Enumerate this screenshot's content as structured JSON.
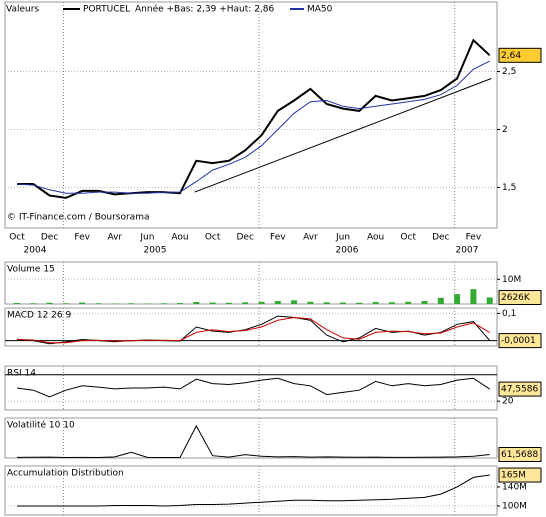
{
  "chart_data": [
    {
      "type": "line",
      "header_label": "Valeurs",
      "range_label": "Année +Bas: 2,39 +Haut: 2,86",
      "source": "© IT-Finance.com / Boursorama",
      "categories": [
        "Oct",
        null,
        "Dec",
        null,
        "Fev",
        null,
        "Avr",
        null,
        "Jun",
        null,
        "Aou",
        null,
        "Oct",
        null,
        "Dec",
        null,
        "Fev",
        null,
        "Avr",
        null,
        "Jun",
        null,
        "Aou",
        null,
        "Oct",
        null,
        "Dec",
        null,
        "Fev",
        null
      ],
      "year_labels": [
        "2004",
        "2005",
        "2006",
        "2007"
      ],
      "series": [
        {
          "name": "PORTUCEL",
          "color": "#000000",
          "values": [
            1.53,
            1.53,
            1.43,
            1.41,
            1.47,
            1.47,
            1.44,
            1.45,
            1.46,
            1.46,
            1.45,
            1.73,
            1.71,
            1.73,
            1.82,
            1.95,
            2.16,
            2.25,
            2.35,
            2.22,
            2.18,
            2.16,
            2.29,
            2.25,
            2.27,
            2.29,
            2.34,
            2.44,
            2.77,
            2.64
          ]
        },
        {
          "name": "MA50",
          "color": "#2233aa",
          "values": [
            1.53,
            1.52,
            1.48,
            1.45,
            1.45,
            1.46,
            1.46,
            1.45,
            1.45,
            1.46,
            1.46,
            1.55,
            1.65,
            1.7,
            1.76,
            1.86,
            2.0,
            2.14,
            2.24,
            2.25,
            2.2,
            2.18,
            2.2,
            2.22,
            2.24,
            2.26,
            2.3,
            2.38,
            2.52,
            2.59
          ]
        }
      ],
      "trendline": {
        "x": [
          10.9,
          29.1
        ],
        "values": [
          1.46,
          2.44
        ],
        "color": "#000000"
      },
      "ylim": [
        1.15,
        3.1
      ],
      "yticks": [
        {
          "value": 1.5,
          "label": "1,5"
        },
        2,
        {
          "value": 2.5,
          "label": "2,5"
        }
      ],
      "grid": true,
      "last_value": 2.64,
      "last_label": "2,64"
    },
    {
      "type": "bar",
      "title": "Volume 15",
      "color": "#33aa33",
      "values": [
        400000,
        300000,
        500000,
        300000,
        600000,
        300000,
        200000,
        300000,
        200000,
        300000,
        400000,
        800000,
        600000,
        500000,
        700000,
        900000,
        1200000,
        1500000,
        900000,
        700000,
        600000,
        500000,
        800000,
        700000,
        900000,
        1200000,
        2500000,
        4000000,
        6000000,
        2626000
      ],
      "ylim": [
        0,
        17000000
      ],
      "yticks": [
        {
          "value": 10000000,
          "label": "10M"
        }
      ],
      "grid": true,
      "last_value": 2626000,
      "last_label": "2626K"
    },
    {
      "type": "line",
      "title": "MACD 12 26 9",
      "series": [
        {
          "color": "#000000",
          "values": [
            0.005,
            0,
            -0.012,
            -0.005,
            0.004,
            0,
            -0.004,
            0,
            0.002,
            0,
            -0.002,
            0.05,
            0.035,
            0.03,
            0.04,
            0.06,
            0.09,
            0.085,
            0.075,
            0.02,
            -0.005,
            0.01,
            0.045,
            0.03,
            0.035,
            0.02,
            0.03,
            0.06,
            0.07,
            -0.0001
          ]
        },
        {
          "color": "#cc0000",
          "values": [
            0.004,
            0.002,
            -0.008,
            -0.008,
            0,
            0.001,
            -0.002,
            -0.001,
            0.001,
            0.001,
            0,
            0.03,
            0.04,
            0.033,
            0.037,
            0.05,
            0.075,
            0.085,
            0.08,
            0.04,
            0.01,
            0.005,
            0.03,
            0.035,
            0.033,
            0.025,
            0.028,
            0.05,
            0.065,
            0.03
          ]
        }
      ],
      "ylim": [
        -0.02,
        0.12
      ],
      "yticks": [
        {
          "value": 0.1,
          "label": "0,1"
        }
      ],
      "guide_lines": [
        0
      ],
      "grid": true,
      "last_value": -0.0001,
      "last_label": "-0,0001"
    },
    {
      "type": "line",
      "title": "RSI 14",
      "series": [
        {
          "color": "#000000",
          "values": [
            50,
            45,
            30,
            45,
            55,
            52,
            48,
            50,
            50,
            52,
            48,
            70,
            60,
            58,
            62,
            68,
            72,
            60,
            55,
            35,
            40,
            45,
            65,
            55,
            60,
            55,
            58,
            68,
            72,
            47.5586
          ]
        }
      ],
      "ylim": [
        0,
        100
      ],
      "yticks": [
        20
      ],
      "guide_lines": [
        80
      ],
      "grid": true,
      "last_value": 47.5586,
      "last_label": "47,5586"
    },
    {
      "type": "line",
      "title": "Volatilité 10 10",
      "series": [
        {
          "color": "#000000",
          "values": [
            10,
            12,
            15,
            8,
            10,
            8,
            20,
            100,
            10,
            8,
            8,
            560,
            40,
            15,
            60,
            30,
            20,
            25,
            15,
            20,
            15,
            12,
            15,
            10,
            10,
            12,
            15,
            20,
            30,
            61.5688
          ]
        }
      ],
      "ylim": [
        0,
        700
      ],
      "yticks": [],
      "grid": false,
      "last_value": 61.5688,
      "last_label": "61,5688"
    },
    {
      "type": "line",
      "title": "Accumulation Distribution",
      "series": [
        {
          "color": "#000000",
          "values": [
            100000000,
            100000000,
            100000000,
            100000000,
            100000000,
            100000000,
            101000000,
            101000000,
            101000000,
            100000000,
            101000000,
            103000000,
            103000000,
            104000000,
            106000000,
            108000000,
            110000000,
            112000000,
            112000000,
            111000000,
            111000000,
            112000000,
            113000000,
            114000000,
            116000000,
            118000000,
            125000000,
            140000000,
            160000000,
            165000000
          ]
        }
      ],
      "ylim": [
        81000000,
        184000000
      ],
      "yticks": [
        {
          "value": 100000000,
          "label": "100M"
        },
        {
          "value": 140000000,
          "label": "140M"
        }
      ],
      "grid": true,
      "last_value": 165000000,
      "last_label": "165M"
    }
  ]
}
